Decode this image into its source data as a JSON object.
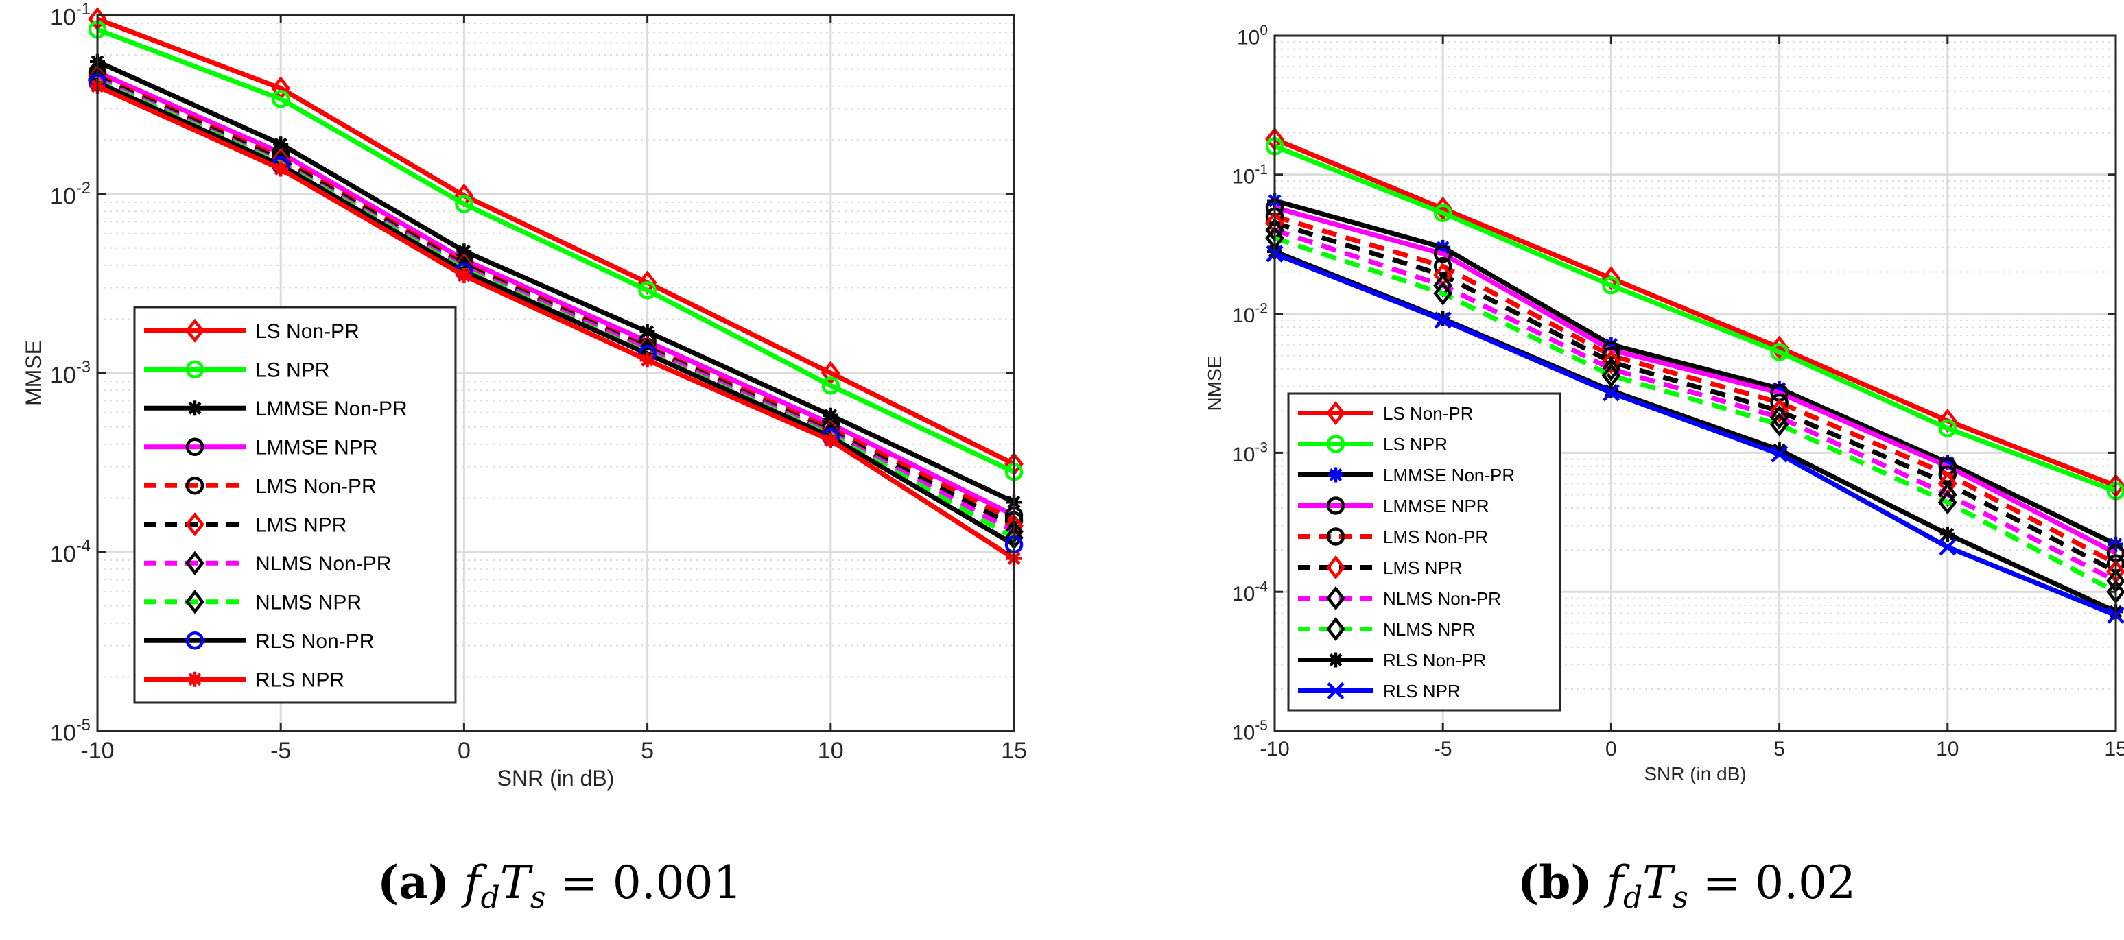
{
  "chart_data": [
    {
      "type": "line",
      "yscale": "log",
      "caption": {
        "label": "(a)",
        "var_main": "f",
        "sub1": "d",
        "var2": "T",
        "sub2": "s",
        "rest": " = 0.001"
      },
      "xlabel": "SNR (in dB)",
      "ylabel": "MMSE",
      "x": [
        -10,
        -5,
        0,
        5,
        10,
        15
      ],
      "xlim": [
        -10,
        15
      ],
      "ylim": [
        1e-05,
        0.1
      ],
      "xticks": [
        "-10",
        "-5",
        "0",
        "5",
        "10",
        "15"
      ],
      "yticks": [
        {
          "base": "10",
          "exp": "-1"
        },
        {
          "base": "10",
          "exp": "-2"
        },
        {
          "base": "10",
          "exp": "-3"
        },
        {
          "base": "10",
          "exp": "-4"
        },
        {
          "base": "10",
          "exp": "-5"
        }
      ],
      "grid": true,
      "legend_position": "lower-left",
      "series": [
        {
          "name": "LS Non-PR",
          "color": "#ff0000",
          "dash": "solid",
          "marker": "diamond",
          "marker_color": "#ff0000",
          "values": [
            0.095,
            0.039,
            0.0098,
            0.0032,
            0.001,
            0.00031
          ]
        },
        {
          "name": "LS NPR",
          "color": "#00ff00",
          "dash": "solid",
          "marker": "circle",
          "marker_color": "#00ff00",
          "values": [
            0.083,
            0.034,
            0.0088,
            0.0029,
            0.00085,
            0.00028
          ]
        },
        {
          "name": "LMMSE Non-PR",
          "color": "#000000",
          "dash": "solid",
          "marker": "asterisk",
          "marker_color": "#000000",
          "values": [
            0.055,
            0.019,
            0.0048,
            0.0017,
            0.00058,
            0.00019
          ]
        },
        {
          "name": "LMMSE NPR",
          "color": "#ff00ff",
          "dash": "solid",
          "marker": "circle",
          "marker_color": "#000000",
          "values": [
            0.048,
            0.017,
            0.0043,
            0.0015,
            0.00052,
            0.00016
          ]
        },
        {
          "name": "LMS Non-PR",
          "color": "#ff0000",
          "dash": "dashed",
          "marker": "circle",
          "marker_color": "#000000",
          "values": [
            0.046,
            0.016,
            0.0041,
            0.0014,
            0.00049,
            0.00015
          ]
        },
        {
          "name": "LMS NPR",
          "color": "#000000",
          "dash": "dashed",
          "marker": "diamond",
          "marker_color": "#ff0000",
          "values": [
            0.045,
            0.0155,
            0.004,
            0.00138,
            0.00047,
            0.00014
          ]
        },
        {
          "name": "NLMS Non-PR",
          "color": "#ff00ff",
          "dash": "dashed",
          "marker": "diamond",
          "marker_color": "#000000",
          "values": [
            0.044,
            0.015,
            0.0039,
            0.00135,
            0.00046,
            0.00013
          ]
        },
        {
          "name": "NLMS NPR",
          "color": "#00ff00",
          "dash": "dashed",
          "marker": "diamond",
          "marker_color": "#000000",
          "values": [
            0.043,
            0.0148,
            0.0038,
            0.0013,
            0.00045,
            0.00012
          ]
        },
        {
          "name": "RLS Non-PR",
          "color": "#000000",
          "dash": "solid",
          "marker": "circle",
          "marker_color": "#0000ff",
          "values": [
            0.042,
            0.0145,
            0.0037,
            0.00128,
            0.00044,
            0.00011
          ]
        },
        {
          "name": "RLS NPR",
          "color": "#ff0000",
          "dash": "solid",
          "marker": "asterisk",
          "marker_color": "#ff0000",
          "values": [
            0.04,
            0.0138,
            0.0035,
            0.00118,
            0.00042,
            9.2e-05
          ]
        }
      ]
    },
    {
      "type": "line",
      "yscale": "log",
      "caption": {
        "label": "(b)",
        "var_main": "f",
        "sub1": "d",
        "var2": "T",
        "sub2": "s",
        "rest": " = 0.02"
      },
      "xlabel": "SNR (in dB)",
      "ylabel": "NMSE",
      "x": [
        -10,
        -5,
        0,
        5,
        10,
        15
      ],
      "xlim": [
        -10,
        15
      ],
      "ylim": [
        1e-05,
        1
      ],
      "xticks": [
        "-10",
        "-5",
        "0",
        "5",
        "10",
        "15"
      ],
      "yticks": [
        {
          "base": "10",
          "exp": "0"
        },
        {
          "base": "10",
          "exp": "-1"
        },
        {
          "base": "10",
          "exp": "-2"
        },
        {
          "base": "10",
          "exp": "-3"
        },
        {
          "base": "10",
          "exp": "-4"
        },
        {
          "base": "10",
          "exp": "-5"
        }
      ],
      "grid": true,
      "legend_position": "lower-left",
      "series": [
        {
          "name": "LS Non-PR",
          "color": "#ff0000",
          "dash": "solid",
          "marker": "diamond",
          "marker_color": "#ff0000",
          "values": [
            0.18,
            0.057,
            0.018,
            0.0057,
            0.0017,
            0.00058
          ]
        },
        {
          "name": "LS NPR",
          "color": "#00ff00",
          "dash": "solid",
          "marker": "circle",
          "marker_color": "#00ff00",
          "values": [
            0.16,
            0.053,
            0.016,
            0.0053,
            0.0015,
            0.00053
          ]
        },
        {
          "name": "LMMSE Non-PR",
          "color": "#000000",
          "dash": "solid",
          "marker": "asterisk",
          "marker_color": "#0000ff",
          "values": [
            0.065,
            0.03,
            0.006,
            0.0029,
            0.00085,
            0.00022
          ]
        },
        {
          "name": "LMMSE NPR",
          "color": "#ff00ff",
          "dash": "solid",
          "marker": "circle",
          "marker_color": "#000000",
          "values": [
            0.058,
            0.027,
            0.0055,
            0.0027,
            0.0008,
            0.00019
          ]
        },
        {
          "name": "LMS Non-PR",
          "color": "#ff0000",
          "dash": "dashed",
          "marker": "circle",
          "marker_color": "#000000",
          "values": [
            0.05,
            0.022,
            0.005,
            0.0023,
            0.0007,
            0.00016
          ]
        },
        {
          "name": "LMS NPR",
          "color": "#000000",
          "dash": "dashed",
          "marker": "diamond",
          "marker_color": "#ff0000",
          "values": [
            0.045,
            0.019,
            0.0045,
            0.002,
            0.0006,
            0.00014
          ]
        },
        {
          "name": "NLMS Non-PR",
          "color": "#ff00ff",
          "dash": "dashed",
          "marker": "diamond",
          "marker_color": "#000000",
          "values": [
            0.04,
            0.016,
            0.004,
            0.0018,
            0.0005,
            0.00012
          ]
        },
        {
          "name": "NLMS NPR",
          "color": "#00ff00",
          "dash": "dashed",
          "marker": "diamond",
          "marker_color": "#000000",
          "values": [
            0.035,
            0.014,
            0.0036,
            0.0016,
            0.00044,
            0.0001
          ]
        },
        {
          "name": "RLS Non-PR",
          "color": "#000000",
          "dash": "solid",
          "marker": "asterisk",
          "marker_color": "#000000",
          "values": [
            0.028,
            0.0092,
            0.0028,
            0.00105,
            0.00026,
            7.2e-05
          ]
        },
        {
          "name": "RLS NPR",
          "color": "#0000ff",
          "dash": "solid",
          "marker": "cross",
          "marker_color": "#0000ff",
          "values": [
            0.027,
            0.009,
            0.0027,
            0.00098,
            0.00021,
            6.8e-05
          ]
        }
      ]
    }
  ]
}
